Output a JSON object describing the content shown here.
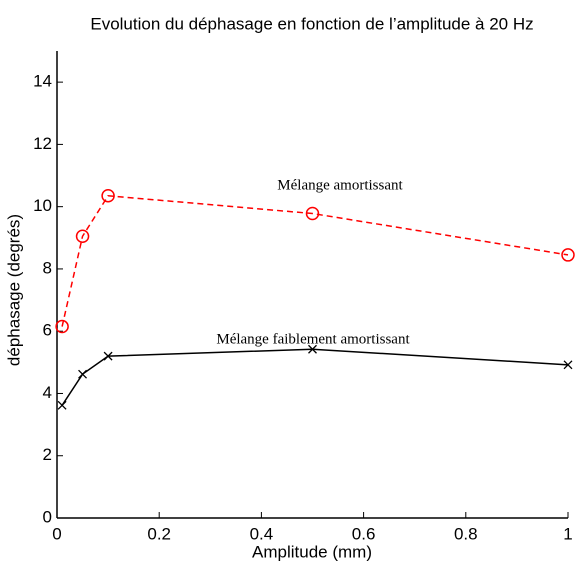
{
  "chart_data": {
    "type": "line",
    "title": "Evolution du déphasage  en fonction de l’amplitude à 20 Hz",
    "xlabel": "Amplitude (mm)",
    "ylabel": "déphasage (degrés)",
    "x": [
      0.01,
      0.05,
      0.1,
      0.5,
      1
    ],
    "series": [
      {
        "name": "Mélange amortissant",
        "color": "#ff0000",
        "marker": "o",
        "linestyle": "dashed",
        "values": [
          6.15,
          9.05,
          10.35,
          9.78,
          8.45
        ]
      },
      {
        "name": "Mélange faiblement amortissant",
        "color": "#000000",
        "marker": "x",
        "linestyle": "solid",
        "values": [
          3.62,
          4.62,
          5.2,
          5.42,
          4.92
        ]
      }
    ],
    "xlim": [
      0,
      1
    ],
    "xticks": [
      0,
      0.2,
      0.4,
      0.6,
      0.8,
      1
    ],
    "ylim": [
      0,
      15
    ],
    "yticks": [
      0,
      2,
      4,
      6,
      8,
      10,
      12,
      14
    ],
    "grid": false
  }
}
